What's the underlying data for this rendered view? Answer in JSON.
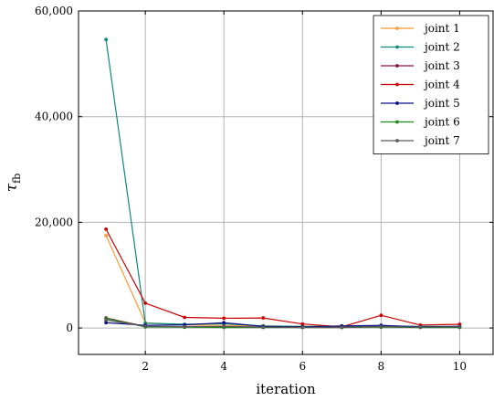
{
  "chart_data": {
    "type": "line",
    "xlabel": "iteration",
    "ylabel_main": "τ",
    "ylabel_sub": "fb",
    "x": [
      1,
      2,
      3,
      4,
      5,
      6,
      7,
      8,
      9,
      10
    ],
    "xlim": [
      0.3,
      10.85
    ],
    "ylim": [
      -5000,
      60000
    ],
    "xticks": [
      2,
      4,
      6,
      8,
      10
    ],
    "xtick_labels": [
      "2",
      "4",
      "6",
      "8",
      "10"
    ],
    "yticks": [
      0,
      20000,
      40000,
      60000
    ],
    "ytick_labels": [
      "0",
      "20,000",
      "40,000",
      "60,000"
    ],
    "grid": true,
    "legend_position": "top-right",
    "series": [
      {
        "name": "joint 1",
        "color": "#ff9933",
        "values": [
          17500,
          1000,
          600,
          500,
          400,
          300,
          250,
          300,
          250,
          200
        ]
      },
      {
        "name": "joint 2",
        "color": "#0a8a7a",
        "values": [
          54600,
          900,
          700,
          800,
          400,
          300,
          300,
          400,
          300,
          300
        ]
      },
      {
        "name": "joint 3",
        "color": "#8a1538",
        "values": [
          1900,
          300,
          200,
          200,
          200,
          200,
          150,
          250,
          150,
          150
        ]
      },
      {
        "name": "joint 4",
        "color": "#cc0000",
        "values": [
          18700,
          4700,
          2000,
          1850,
          1900,
          750,
          200,
          2400,
          550,
          700
        ]
      },
      {
        "name": "joint 5",
        "color": "#0c0c8a",
        "values": [
          1000,
          500,
          600,
          1000,
          300,
          200,
          400,
          500,
          200,
          300
        ]
      },
      {
        "name": "joint 6",
        "color": "#1a8a1a",
        "values": [
          1800,
          200,
          150,
          100,
          100,
          100,
          100,
          150,
          100,
          100
        ]
      },
      {
        "name": "joint 7",
        "color": "#5a5a5a",
        "values": [
          1500,
          300,
          250,
          300,
          150,
          100,
          100,
          250,
          150,
          200
        ]
      }
    ]
  }
}
